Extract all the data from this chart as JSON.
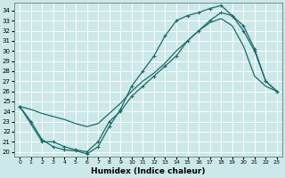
{
  "xlabel": "Humidex (Indice chaleur)",
  "bg_color": "#cce8e8",
  "grid_color": "#ffffff",
  "line_color": "#1a6b6b",
  "xlim": [
    -0.5,
    23.5
  ],
  "ylim": [
    19.5,
    34.8
  ],
  "xticks": [
    0,
    1,
    2,
    3,
    4,
    5,
    6,
    7,
    8,
    9,
    10,
    11,
    12,
    13,
    14,
    15,
    16,
    17,
    18,
    19,
    20,
    21,
    22,
    23
  ],
  "yticks": [
    20,
    21,
    22,
    23,
    24,
    25,
    26,
    27,
    28,
    29,
    30,
    31,
    32,
    33,
    34
  ],
  "line1_x": [
    0,
    1,
    2,
    3,
    4,
    5,
    6,
    7,
    8,
    9,
    10,
    11,
    12,
    13,
    14,
    15,
    16,
    17,
    18,
    19,
    20,
    21,
    22,
    23
  ],
  "line1_y": [
    24.5,
    23.0,
    21.2,
    20.5,
    20.2,
    20.1,
    19.8,
    20.5,
    22.5,
    24.2,
    26.5,
    28.0,
    29.5,
    31.5,
    33.0,
    33.5,
    33.8,
    34.2,
    34.5,
    33.5,
    32.5,
    30.2,
    27.0,
    26.0
  ],
  "line2_x": [
    0,
    1,
    2,
    3,
    4,
    5,
    6,
    7,
    8,
    9,
    10,
    11,
    12,
    13,
    14,
    15,
    16,
    17,
    18,
    19,
    20,
    21,
    22,
    23
  ],
  "line2_y": [
    24.5,
    24.2,
    23.8,
    23.5,
    23.2,
    22.8,
    22.5,
    22.8,
    23.8,
    24.8,
    26.0,
    27.0,
    27.8,
    28.8,
    30.0,
    31.0,
    32.0,
    32.8,
    33.2,
    32.5,
    30.5,
    27.5,
    26.5,
    26.0
  ],
  "line3_x": [
    0,
    2,
    3,
    4,
    5,
    6,
    7,
    8,
    9,
    10,
    11,
    12,
    13,
    14,
    15,
    16,
    17,
    18,
    19,
    20,
    21,
    22,
    23
  ],
  "line3_y": [
    24.5,
    21.0,
    21.0,
    20.5,
    20.2,
    20.0,
    21.0,
    23.0,
    24.0,
    25.5,
    26.5,
    27.5,
    28.5,
    29.5,
    31.0,
    32.0,
    33.0,
    33.8,
    33.5,
    32.0,
    30.0,
    27.0,
    26.0
  ]
}
